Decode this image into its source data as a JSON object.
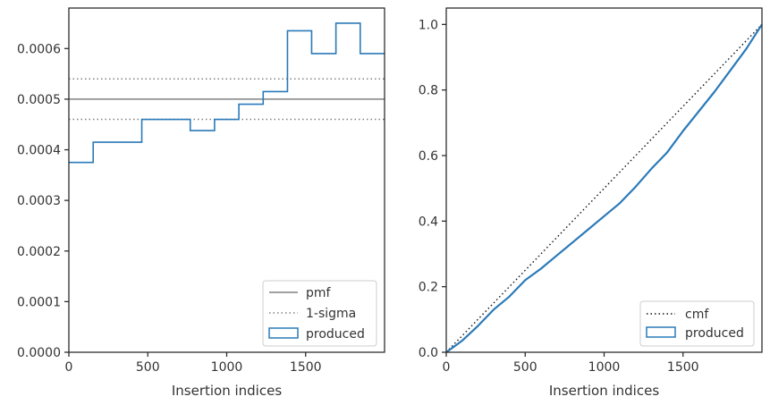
{
  "colors": {
    "produced": "#2a7ab9",
    "pmf": "#808080",
    "sigma": "#808080",
    "cmf": "#111111",
    "axes": "#262626"
  },
  "chart_data": [
    {
      "type": "histogram",
      "xlabel": "Insertion indices",
      "ylabel": "",
      "xlim": [
        0,
        2000
      ],
      "ylim": [
        0,
        0.00068
      ],
      "x_ticks": [
        0,
        500,
        1000,
        1500
      ],
      "x_tick_labels": [
        "0",
        "500",
        "1000",
        "1500"
      ],
      "y_ticks": [
        0,
        0.0001,
        0.0002,
        0.0003,
        0.0004,
        0.0005,
        0.0006
      ],
      "y_tick_labels": [
        "0.0000",
        "0.0001",
        "0.0002",
        "0.0003",
        "0.0004",
        "0.0005",
        "0.0006"
      ],
      "bin_edges": [
        0,
        154,
        462,
        769,
        923,
        1077,
        1231,
        1385,
        1538,
        1692,
        1846,
        2000
      ],
      "produced_values": [
        0.000375,
        0.000415,
        0.00046,
        0.000438,
        0.00046,
        0.00049,
        0.000515,
        0.000635,
        0.00059,
        0.00065,
        0.00059
      ],
      "pmf": 0.0005,
      "one_sigma": [
        0.00046,
        0.00054
      ],
      "legend": [
        "pmf",
        "1-sigma",
        "produced"
      ],
      "legend_position": "lower-right"
    },
    {
      "type": "line",
      "xlabel": "Insertion indices",
      "ylabel": "",
      "xlim": [
        0,
        2000
      ],
      "ylim": [
        0,
        1.05
      ],
      "x_ticks": [
        0,
        500,
        1000,
        1500
      ],
      "x_tick_labels": [
        "0",
        "500",
        "1000",
        "1500"
      ],
      "y_ticks": [
        0,
        0.2,
        0.4,
        0.6,
        0.8,
        1.0
      ],
      "y_tick_labels": [
        "0.0",
        "0.2",
        "0.4",
        "0.6",
        "0.8",
        "1.0"
      ],
      "cmf": {
        "x": [
          0,
          2000
        ],
        "y": [
          0,
          1.0
        ]
      },
      "produced": {
        "x": [
          0,
          100,
          200,
          300,
          400,
          500,
          600,
          700,
          800,
          900,
          1000,
          1100,
          1200,
          1300,
          1400,
          1500,
          1600,
          1700,
          1800,
          1900,
          2000
        ],
        "y": [
          0,
          0.035,
          0.08,
          0.13,
          0.17,
          0.22,
          0.255,
          0.295,
          0.335,
          0.375,
          0.415,
          0.455,
          0.505,
          0.56,
          0.61,
          0.675,
          0.735,
          0.795,
          0.86,
          0.925,
          1.0
        ]
      },
      "legend": [
        "cmf",
        "produced"
      ],
      "legend_position": "lower-right"
    }
  ]
}
